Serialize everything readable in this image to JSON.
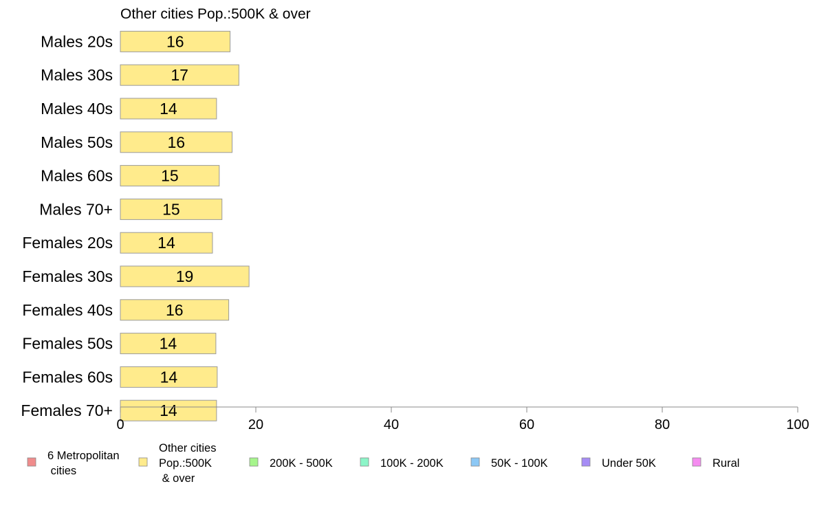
{
  "chart_data": {
    "type": "bar",
    "orientation": "horizontal",
    "title": "Other cities Pop.:500K & over",
    "categories": [
      "Males 20s",
      "Males 30s",
      "Males 40s",
      "Males 50s",
      "Males 60s",
      "Males 70+",
      "Females 20s",
      "Females 30s",
      "Females 40s",
      "Females 50s",
      "Females 60s",
      "Females 70+"
    ],
    "series": [
      {
        "name": "Other cities Pop.:500K & over",
        "values": [
          16.2,
          17.5,
          14.2,
          16.5,
          14.6,
          15.0,
          13.6,
          19.0,
          16.0,
          14.1,
          14.3,
          14.2
        ],
        "color": "#ffeb8c"
      }
    ],
    "data_labels": [
      "16",
      "17",
      "14",
      "16",
      "15",
      "15",
      "14",
      "19",
      "16",
      "14",
      "14",
      "14"
    ],
    "xlim": [
      0,
      100
    ],
    "xticks": [
      "0",
      "20",
      "40",
      "60",
      "80",
      "100"
    ],
    "grid": false,
    "legend": {
      "position": "bottom",
      "items": [
        {
          "lines": [
            "6 Metropolitan",
            " cities"
          ],
          "color": "#f08c8c"
        },
        {
          "lines": [
            "Other cities",
            "Pop.:500K",
            " & over"
          ],
          "color": "#ffeb8c"
        },
        {
          "lines": [
            "200K - 500K"
          ],
          "color": "#a6f58c"
        },
        {
          "lines": [
            "100K - 200K"
          ],
          "color": "#8cf5c8"
        },
        {
          "lines": [
            "50K - 100K"
          ],
          "color": "#8cc8f5"
        },
        {
          "lines": [
            "Under 50K"
          ],
          "color": "#a68cf5"
        },
        {
          "lines": [
            "Rural"
          ],
          "color": "#f58cf0"
        }
      ]
    }
  }
}
